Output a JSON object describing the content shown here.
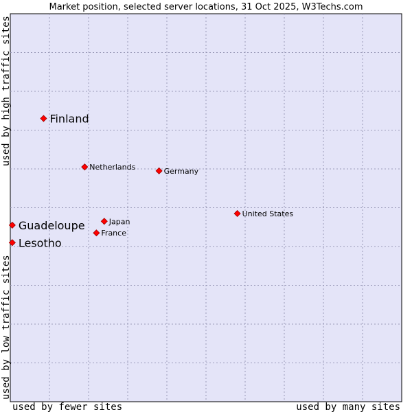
{
  "chart_data": {
    "type": "scatter",
    "title": "Market position, selected server locations, 31 Oct 2025, W3Techs.com",
    "xlabel_left": "used by fewer sites",
    "xlabel_right": "used by many sites",
    "ylabel_bottom": "used by low traffic sites",
    "ylabel_top": "used by high traffic sites",
    "xlim": [
      0,
      10
    ],
    "ylim": [
      0,
      10
    ],
    "grid": true,
    "colors": {
      "plot_bg": "#e4e4f8",
      "point": "#ff0000",
      "point_edge": "#990000"
    },
    "points": [
      {
        "label": "Finland",
        "x": 0.85,
        "y": 7.3,
        "emphasis": true
      },
      {
        "label": "Netherlands",
        "x": 1.9,
        "y": 6.05,
        "emphasis": false
      },
      {
        "label": "Germany",
        "x": 3.8,
        "y": 5.95,
        "emphasis": false
      },
      {
        "label": "United States",
        "x": 5.8,
        "y": 4.85,
        "emphasis": false
      },
      {
        "label": "Japan",
        "x": 2.4,
        "y": 4.65,
        "emphasis": false
      },
      {
        "label": "France",
        "x": 2.2,
        "y": 4.35,
        "emphasis": false
      },
      {
        "label": "Guadeloupe",
        "x": 0.05,
        "y": 4.55,
        "emphasis": true
      },
      {
        "label": "Lesotho",
        "x": 0.05,
        "y": 4.1,
        "emphasis": true
      }
    ]
  }
}
